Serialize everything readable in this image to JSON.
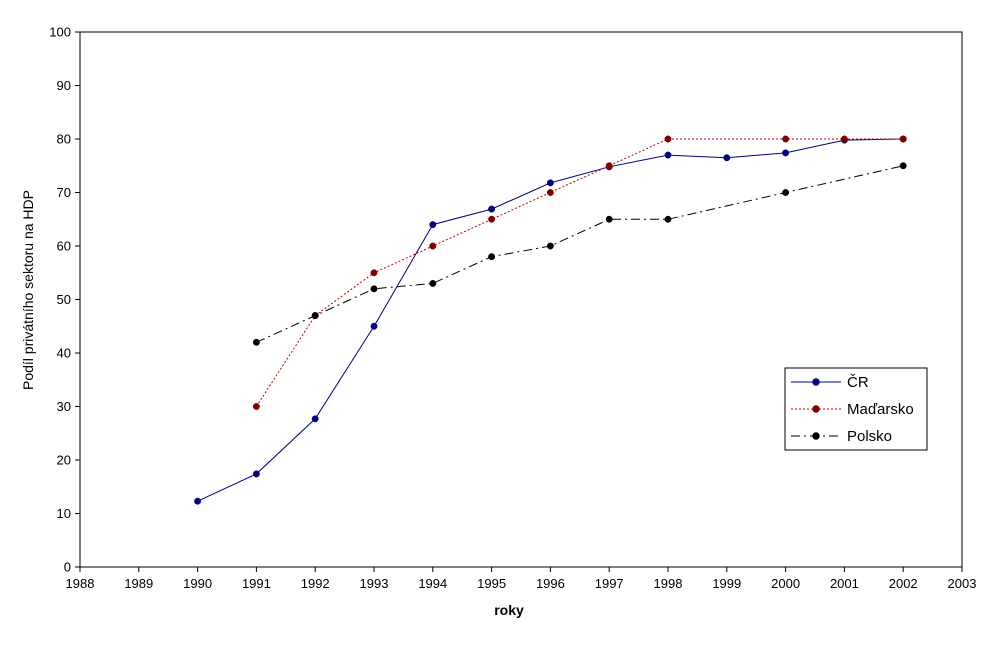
{
  "chart_data": {
    "type": "line",
    "xlabel": "roky",
    "ylabel": "Podíl privátního sektoru na HDP",
    "xlim": [
      1988,
      2003
    ],
    "ylim": [
      0,
      100
    ],
    "x_ticks": [
      1988,
      1989,
      1990,
      1991,
      1992,
      1993,
      1994,
      1995,
      1996,
      1997,
      1998,
      1999,
      2000,
      2001,
      2002,
      2003
    ],
    "y_ticks": [
      0,
      10,
      20,
      30,
      40,
      50,
      60,
      70,
      80,
      90,
      100
    ],
    "grid": false,
    "legend_position": "right",
    "series": [
      {
        "name": "ČR",
        "color": "#000080",
        "marker_color": "#000080",
        "line_style": "solid",
        "x": [
          1990,
          1991,
          1992,
          1993,
          1994,
          1995,
          1996,
          1997,
          1998,
          1999,
          2000,
          2001,
          2002
        ],
        "y": [
          12.3,
          17.4,
          27.7,
          45,
          64,
          66.9,
          71.8,
          74.8,
          77,
          76.5,
          77.4,
          79.8,
          80
        ]
      },
      {
        "name": "Maďarsko",
        "color": "#c00000",
        "marker_color": "#800000",
        "line_style": "dotted",
        "x": [
          1991,
          1992,
          1993,
          1994,
          1995,
          1996,
          1997,
          1998,
          1999,
          2000,
          2001,
          2002
        ],
        "y": [
          30,
          47,
          55,
          60,
          65,
          70,
          75,
          80,
          null,
          80,
          80,
          80
        ]
      },
      {
        "name": "Polsko",
        "color": "#000000",
        "marker_color": "#000000",
        "line_style": "dashdot",
        "x": [
          1991,
          1992,
          1993,
          1994,
          1995,
          1996,
          1997,
          1998,
          1999,
          2000,
          2001,
          2002
        ],
        "y": [
          42,
          47,
          52,
          53,
          58,
          60,
          65,
          65,
          null,
          70,
          null,
          75
        ]
      }
    ]
  }
}
